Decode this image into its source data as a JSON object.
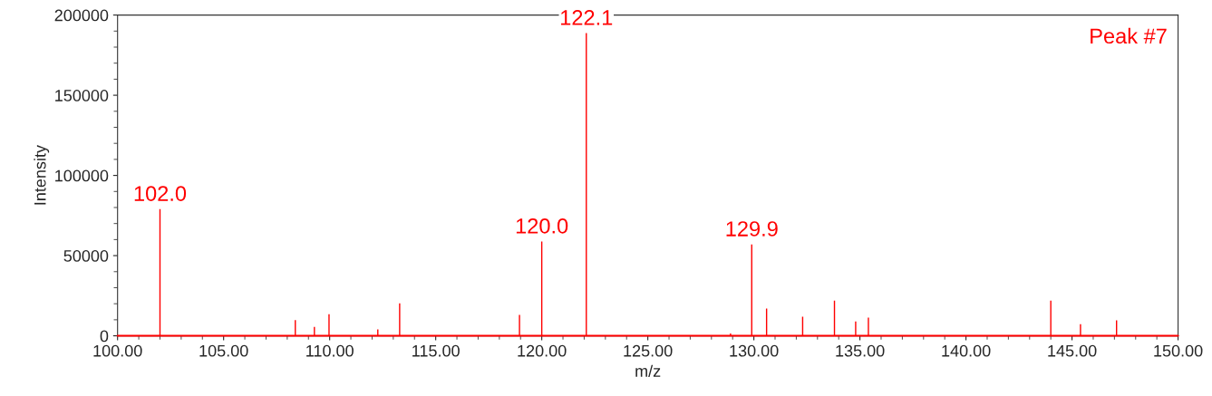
{
  "chart_data": {
    "type": "bar",
    "xlabel": "m/z",
    "ylabel": "Intensity",
    "x": [
      102.0,
      108.38,
      109.28,
      109.97,
      112.27,
      113.3,
      117.9,
      118.95,
      120.0,
      122.1,
      128.9,
      129.9,
      130.6,
      132.3,
      133.8,
      134.8,
      135.4,
      144.0,
      145.4,
      147.1
    ],
    "values": [
      79000,
      9800,
      5600,
      13500,
      4000,
      20300,
      null,
      13000,
      58800,
      188700,
      1500,
      57000,
      17000,
      11900,
      22000,
      9000,
      11300,
      22000,
      7300,
      9600
    ],
    "color": "#ff0000",
    "xlim": [
      100,
      150
    ],
    "xticks": [
      {
        "value": 100,
        "label": "100.00"
      },
      {
        "value": 105,
        "label": "105.00"
      },
      {
        "value": 110,
        "label": "110.00"
      },
      {
        "value": 115,
        "label": "115.00"
      },
      {
        "value": 120,
        "label": "120.00"
      },
      {
        "value": 125,
        "label": "125.00"
      },
      {
        "value": 130,
        "label": "130.00"
      },
      {
        "value": 135,
        "label": "135.00"
      },
      {
        "value": 140,
        "label": "140.00"
      },
      {
        "value": 145,
        "label": "145.00"
      },
      {
        "value": 150,
        "label": "150.00"
      }
    ],
    "ylim": [
      0,
      200000
    ],
    "yticks": [
      0,
      50000,
      100000,
      150000,
      200000
    ],
    "ref_lines": [
      {
        "axis": "y",
        "value": 0,
        "color": "#ff0000"
      }
    ],
    "annotations": [
      "Peak #7",
      {
        "text": "102.0",
        "x": 102.0,
        "y": 79000
      },
      {
        "text": "120.0",
        "x": 120.0,
        "y": 58800
      },
      {
        "text": "122.1",
        "x": 122.1,
        "y": 188700
      },
      {
        "text": "129.9",
        "x": 129.9,
        "y": 57000
      }
    ],
    "grid": false
  }
}
